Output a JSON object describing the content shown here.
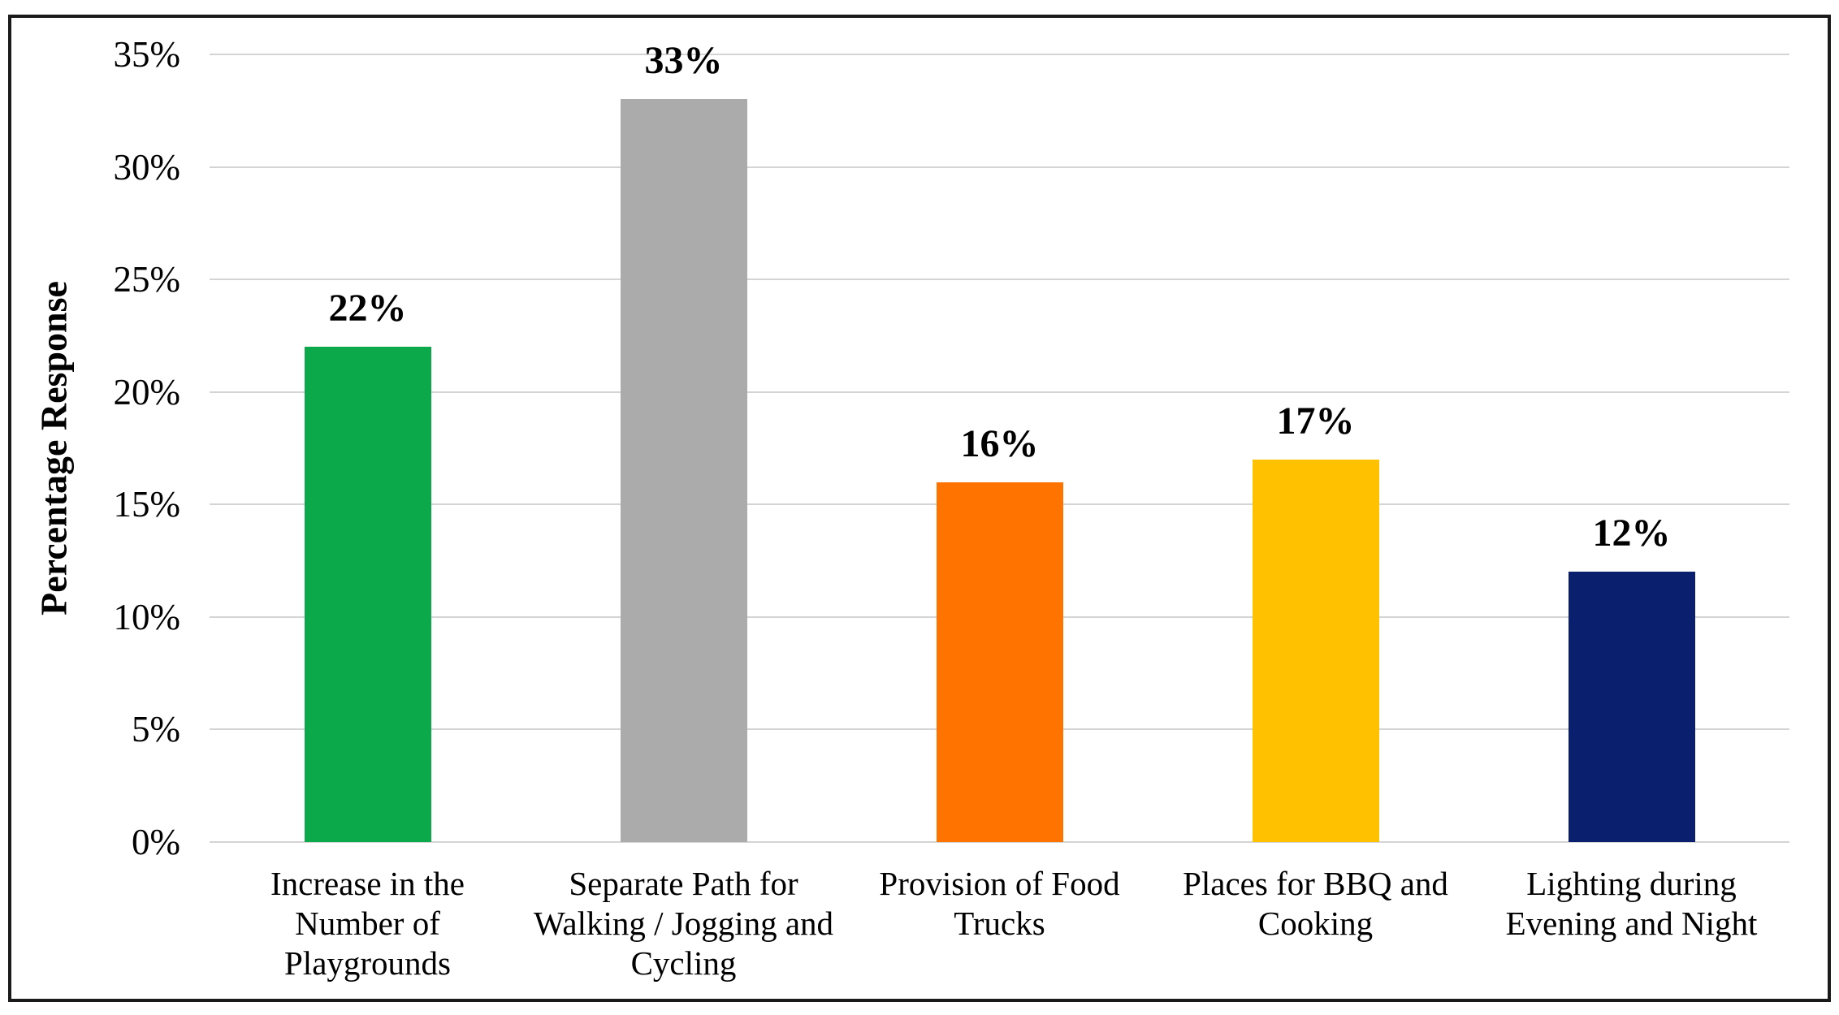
{
  "chart_data": {
    "type": "bar",
    "title": "",
    "ylabel": "Percentage Response",
    "xlabel": "",
    "categories": [
      "Increase in the\nNumber of\nPlaygrounds",
      "Separate Path for\nWalking / Jogging and\nCycling",
      "Provision of Food\nTrucks",
      "Places for BBQ and\nCooking",
      "Lighting during\nEvening and Night"
    ],
    "values": [
      22,
      33,
      16,
      17,
      12
    ],
    "data_labels": [
      "22%",
      "33%",
      "16%",
      "17%",
      "12%"
    ],
    "colors": [
      "#0ca94b",
      "#ababab",
      "#ff7300",
      "#ffc100",
      "#0a1f6e"
    ],
    "ylim": [
      0,
      35
    ],
    "ytick_step": 5,
    "ytick_labels": [
      "0%",
      "5%",
      "10%",
      "15%",
      "20%",
      "25%",
      "30%",
      "35%"
    ],
    "grid": "horizontal",
    "gridline_color": "#d4d4d4",
    "legend": "none",
    "frame_color": "#1a1a1a"
  }
}
